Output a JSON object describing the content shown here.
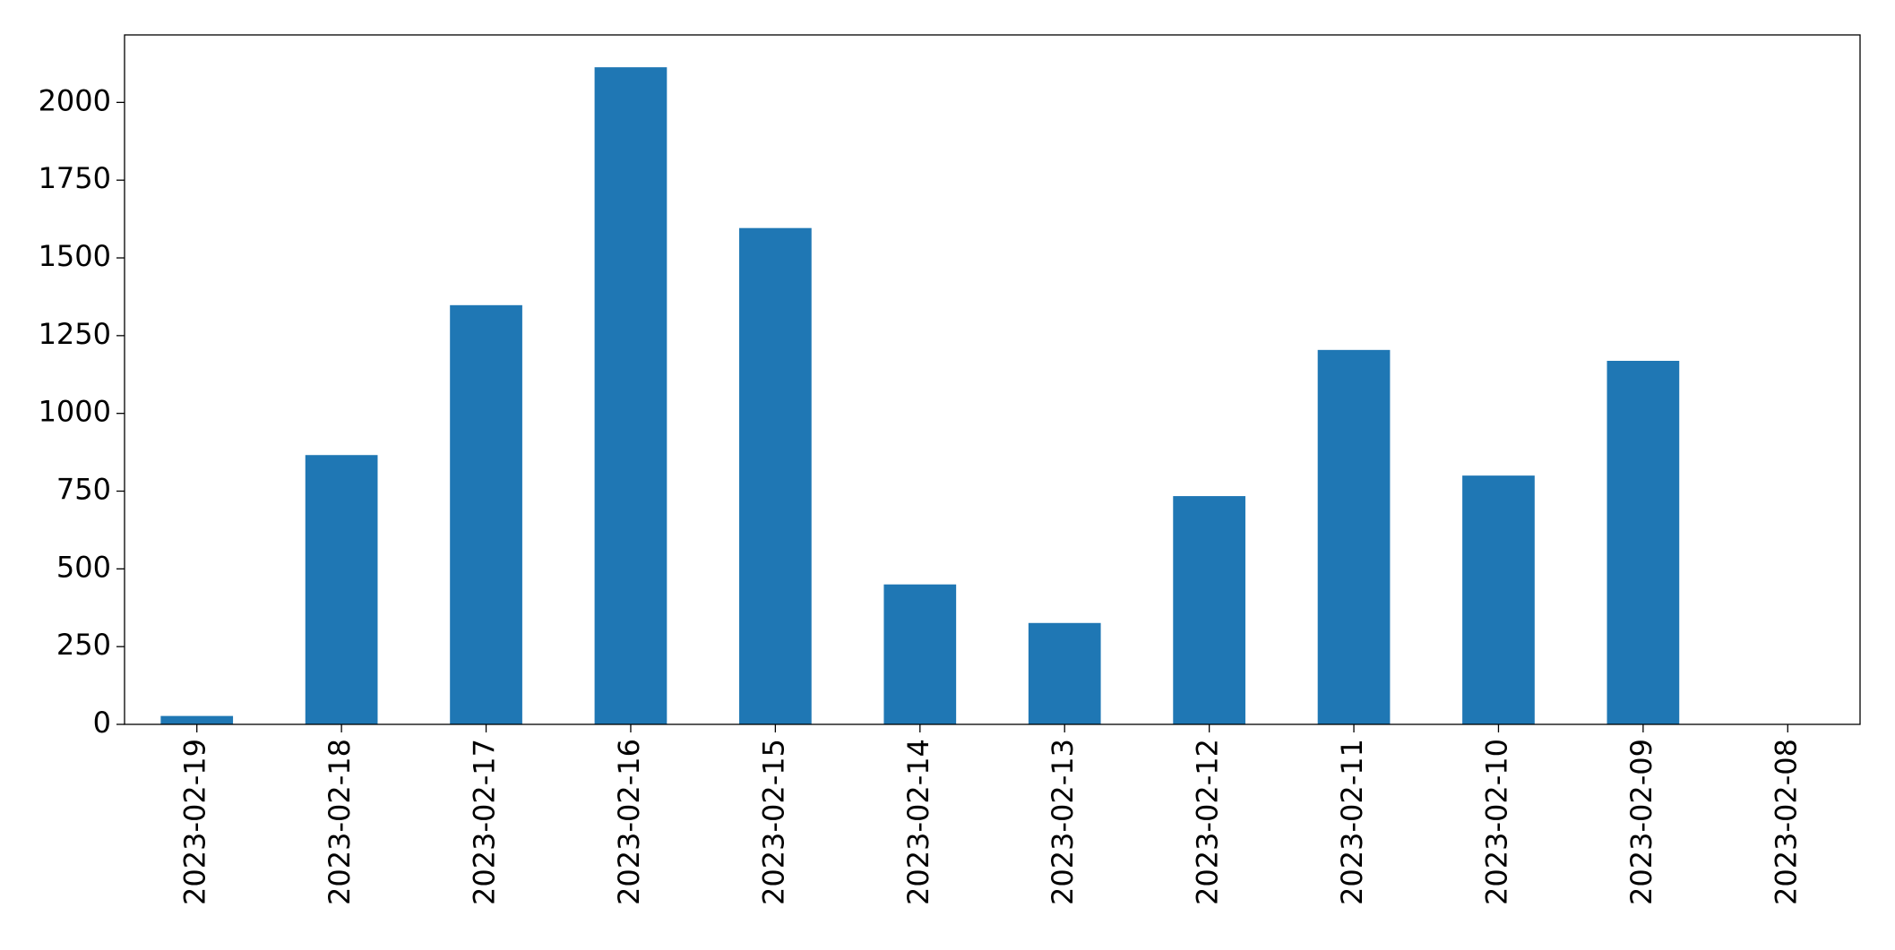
{
  "chart_data": {
    "type": "bar",
    "categories": [
      "2023-02-19",
      "2023-02-18",
      "2023-02-17",
      "2023-02-16",
      "2023-02-15",
      "2023-02-14",
      "2023-02-13",
      "2023-02-12",
      "2023-02-11",
      "2023-02-10",
      "2023-02-09",
      "2023-02-08"
    ],
    "values": [
      27,
      866,
      1348,
      2113,
      1596,
      450,
      326,
      734,
      1204,
      800,
      1169,
      0
    ],
    "color": "#1f77b4",
    "ylim": [
      0,
      2217
    ],
    "yticks": [
      0,
      250,
      500,
      750,
      1000,
      1250,
      1500,
      1750,
      2000
    ],
    "grid": false
  }
}
